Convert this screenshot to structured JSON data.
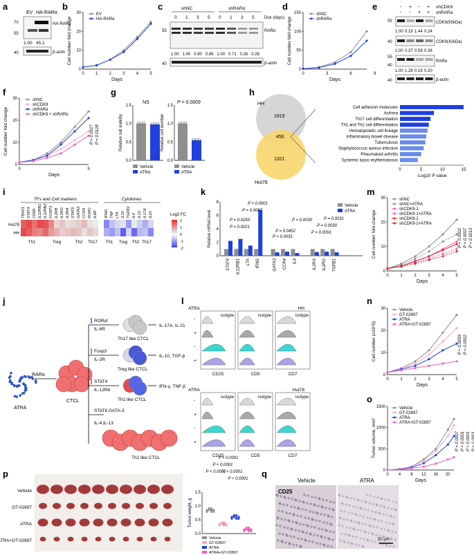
{
  "panels": {
    "a": {
      "letter": "a",
      "lanes": [
        "EV",
        "HA-RARα"
      ],
      "marker_top": "HA-RARα",
      "ladder_top": [
        "70",
        "55"
      ],
      "values": [
        "1.00",
        "45.1"
      ],
      "loading": "β-actin",
      "ladder_bottom": "40"
    },
    "b": {
      "letter": "b",
      "xlabel": "Days",
      "ylabel": "Cell number fold change",
      "legend": [
        "EV",
        "HA-RARα"
      ]
    },
    "c": {
      "letter": "c",
      "groups": [
        "shNC",
        "shRARα"
      ],
      "dox_label": "Dox (days)",
      "days": [
        "0",
        "1",
        "3",
        "5",
        "0",
        "1",
        "3",
        "5"
      ],
      "marker": "RARα",
      "ladder": [
        "55",
        "40"
      ],
      "values": [
        "1.00",
        "1.00",
        "0.90",
        "0.89",
        "1.00",
        "0.71",
        "0.26",
        "0.28"
      ],
      "loading": "β-actin"
    },
    "d": {
      "letter": "d",
      "xlabel": "Days",
      "ylabel": "Cell number fold change",
      "legend": [
        "shNC",
        "shRARα"
      ]
    },
    "e": {
      "letter": "e",
      "row_labels": [
        "shCDK9",
        "shRARα"
      ],
      "signs": [
        "-",
        "+",
        "-",
        "+",
        "-",
        "-",
        "+",
        "+"
      ],
      "markers": [
        "CDK9(55kDa)",
        "CDK9(42kDa)",
        "RARα",
        "β-actin"
      ],
      "ladder": [
        "55",
        "40",
        "40",
        "55",
        "40"
      ],
      "row1": [
        "1.00",
        "0.19",
        "1.44",
        "0.24"
      ],
      "row2": [
        "1.00",
        "0.37",
        "0.59",
        "0.36"
      ],
      "row3": [
        "1.00",
        "1.28",
        "0.23",
        "0.20"
      ]
    },
    "f": {
      "letter": "f",
      "xlabel": "Days",
      "ylabel": "Cell number fold change",
      "legend": [
        "shNC",
        "shCDK9",
        "shRARα",
        "shCDK9 + shRARα"
      ],
      "pvals": [
        "P = 0.0027",
        "P = 0.0128"
      ]
    },
    "g": {
      "letter": "g",
      "ylabel1": "Relative cell viability",
      "ylabel2": "Relative cell number",
      "ns": "NS",
      "p": "P = 0.0009",
      "legend": [
        "Vehicle",
        "ATRA"
      ]
    },
    "h": {
      "letter": "h",
      "hh": "HH",
      "hut": "Hut78",
      "n1": "1819",
      "n2": "456",
      "n3": "1321",
      "xlabel": "-Log10 P value",
      "terms": [
        "Cell adhesion molecules",
        "Asthma",
        "Th17 cell differentiation",
        "Th1 and Th2 cell differentiation",
        "Hematopoietic cell lineage",
        "Inflammatory bowel disease",
        "Tuberculosis",
        "Staphylococcus aureus infection",
        "Rheumatoid arthritis",
        "Systemic lupus erythematosus"
      ],
      "ticks": [
        "0",
        "5",
        "10",
        "15"
      ]
    },
    "i": {
      "letter": "i",
      "groupTitle1": "TFs and Cell markers",
      "groupTitle2": "Cytokines",
      "genes1": [
        "TBX21",
        "STAT4",
        "CD69",
        "IL12RB1",
        "IL12RB2",
        "FOXP3",
        "IL2RB",
        "IL2RG",
        "IL2RA",
        "STAT6",
        "GATA3",
        "CCR4",
        "RORC",
        "IL6R"
      ],
      "genes2": [
        "IFNG",
        "TNF",
        "LTA",
        "IL10",
        "TGFB1",
        "IL4",
        "IL13",
        "IL17A",
        "IL21"
      ],
      "rows": [
        "Hut78",
        "HH"
      ],
      "subsets1": [
        "Th1",
        "Treg",
        "Th2",
        "Th17"
      ],
      "subsets2": [
        "Th1",
        "Treg",
        "Th2",
        "Th17"
      ],
      "legend": "Log2 FC",
      "legend_ticks": [
        "2",
        "1",
        "0",
        "-1",
        "-2"
      ]
    },
    "k": {
      "letter": "k",
      "ylabel": "Relative mRNA level",
      "genes": [
        "STAT4",
        "IL12RB1",
        "LTA",
        "IFNG",
        "GATA3",
        "CCR4",
        "IL4",
        "IL2RA",
        "IL2RG",
        "TGFB1"
      ],
      "pvals": [
        "P < 0.0001",
        "P = 0.0087",
        "P = 0.0250",
        "P = 0.0021",
        "P = 0.0452",
        "P = 0.0031",
        "P = 0.0030",
        "P = 0.0031",
        "P = 0.0030",
        "P = 0.0091"
      ],
      "legend": [
        "Vehicle",
        "ATRA"
      ]
    },
    "m": {
      "letter": "m",
      "xlabel": "Days",
      "ylabel": "Cell number fold change",
      "legend": [
        "shNC",
        "shNC+ATRA",
        "shCDK9-1",
        "shCDK9-1+ATRA",
        "shCDK9-2",
        "shCDK9-2+ATRA"
      ],
      "pvals": [
        "P = 0.0002",
        "P = 0.0007",
        "P = 0.0013"
      ]
    },
    "j": {
      "letter": "j",
      "atra": "ATRA",
      "rara": "RARα",
      "ctcl": "CTCL",
      "th17_reg": [
        "RORγt",
        "IL-6R"
      ],
      "th17_out": "IL-17A, IL-21",
      "th17": "Th17 like CTCL",
      "treg_reg": [
        "Foxp3",
        "IL-2R"
      ],
      "treg_out": "IL-10, TGF-β",
      "treg": "Treg like CTCL",
      "th1_reg": [
        "STAT4",
        "IL-12Rb"
      ],
      "th1_out": "IFN-γ, TNF-β",
      "th1": "Th1 like CTCL",
      "th2_reg": [
        "STAT6,GATA-3",
        "IL-4,IL-13"
      ],
      "th2": "Th2 like CTCL"
    },
    "l": {
      "letter": "l",
      "atra": "ATRA",
      "cells": [
        "HH",
        "Hut78"
      ],
      "markers": [
        "CD25",
        "CD5",
        "CD7"
      ],
      "isotype": "isotype",
      "signs": [
        "-",
        "+",
        "-",
        "+"
      ]
    },
    "n": {
      "letter": "n",
      "xlabel": "Days",
      "ylabel": "Cell number (x10^5)",
      "legend": [
        "Vehicle",
        "GT-02897",
        "ATRA",
        "ATRA+GT-02897"
      ],
      "pvals": [
        "P = 0.0059",
        "P = 0.0002"
      ]
    },
    "o": {
      "letter": "o",
      "xlabel": "Days",
      "ylabel": "Tumor volume, mm³",
      "legend": [
        "Vehicle",
        "GT-02897",
        "ATRA",
        "ATRA+GT-02897"
      ],
      "pvals": [
        "P = 0.0007",
        "P < 0.0001",
        "P < 0.0001",
        "P < 0.0001"
      ]
    },
    "p": {
      "letter": "p",
      "rows": [
        "Vehicle",
        "GT-02897",
        "ATRA",
        "ATRA+GT-02897"
      ],
      "ylabel": "Tumor weight, g",
      "pvals": [
        "P < 0.0001",
        "P < 0.0001",
        "P < 0.0001",
        "P < 0.0001",
        "P < 0.0001"
      ],
      "legend": [
        "Vehicle",
        "GT-02897",
        "ATRA",
        "ATRA+GT-02897"
      ]
    },
    "q": {
      "letter": "q",
      "cols": [
        "Vehicle",
        "ATRA"
      ],
      "marker": "CD25",
      "scale": "50 μm"
    }
  },
  "colors": {
    "gray": "#8f8f8f",
    "blue": "#1f3fe0",
    "pink": "#f05fb8",
    "lightpink": "#f6a8c8",
    "red": "#d62828",
    "cyan": "#3cd6d0",
    "lavender": "#a9a4e6",
    "venn_gray": "#d6d6d6",
    "venn_yellow": "#f8d66c"
  },
  "chart_data": [
    {
      "panel": "b",
      "type": "line",
      "x": [
        0,
        1,
        2,
        3,
        4,
        5
      ],
      "series": [
        {
          "name": "EV",
          "values": [
            1,
            2,
            5,
            10,
            17,
            25
          ]
        },
        {
          "name": "HA-RARα",
          "values": [
            1,
            2,
            5,
            9,
            16,
            24
          ]
        }
      ],
      "ylim": [
        0,
        30
      ],
      "xlabel": "Days",
      "ylabel": "Cell number fold change"
    },
    {
      "panel": "d",
      "type": "line",
      "x": [
        0,
        2,
        4,
        6,
        8
      ],
      "series": [
        {
          "name": "shNC",
          "values": [
            1,
            5,
            18,
            45,
            100
          ]
        },
        {
          "name": "shRARα",
          "values": [
            1,
            4,
            14,
            35,
            75
          ]
        }
      ],
      "ylim": [
        0,
        150
      ],
      "xlabel": "Days"
    },
    {
      "panel": "f",
      "type": "line",
      "x": [
        0,
        1,
        2,
        3,
        4,
        5
      ],
      "series": [
        {
          "name": "shNC",
          "values": [
            1,
            2,
            5,
            10,
            17,
            24
          ]
        },
        {
          "name": "shCDK9",
          "values": [
            1,
            2,
            4,
            7,
            11,
            15
          ]
        },
        {
          "name": "shRARα",
          "values": [
            1,
            2,
            4,
            9,
            15,
            21
          ]
        },
        {
          "name": "shCDK9 + shRARα",
          "values": [
            1,
            1.5,
            3,
            5,
            9,
            13
          ]
        }
      ],
      "ylim": [
        0,
        30
      ],
      "xlabel": "Days"
    },
    {
      "panel": "g-left",
      "type": "bar",
      "categories": [
        "Vehicle",
        "ATRA"
      ],
      "values": [
        1.0,
        0.98
      ],
      "ylim": [
        0,
        1.5
      ]
    },
    {
      "panel": "g-right",
      "type": "bar",
      "categories": [
        "Vehicle",
        "ATRA"
      ],
      "values": [
        1.0,
        0.55
      ],
      "ylim": [
        0,
        1.5
      ]
    },
    {
      "panel": "h",
      "type": "bar",
      "categories": [
        "Cell adhesion molecules",
        "Asthma",
        "Th17 cell differentiation",
        "Th1 and Th2 cell differentiation",
        "Hematopoietic cell lineage",
        "Inflammatory bowel disease",
        "Tuberculosis",
        "Staphylococcus aureus infection",
        "Rheumatoid arthritis",
        "Systemic lupus erythematosus"
      ],
      "values": [
        15,
        8,
        7.2,
        6.8,
        6.5,
        6.2,
        6.0,
        5.6,
        5.0,
        4.2
      ],
      "xlim": [
        0,
        15
      ],
      "xlabel": "-Log10 P value"
    },
    {
      "panel": "k",
      "type": "bar",
      "categories": [
        "STAT4",
        "IL12RB1",
        "LTA",
        "IFNG",
        "GATA3",
        "CCR4",
        "IL4",
        "IL2RA",
        "IL2RG",
        "TGFB1"
      ],
      "series": [
        {
          "name": "Vehicle",
          "values": [
            1,
            1,
            1,
            1,
            1,
            1,
            1,
            1,
            1,
            1
          ]
        },
        {
          "name": "ATRA",
          "values": [
            2.2,
            2.5,
            1.5,
            6.8,
            0.5,
            0.6,
            0.4,
            0.55,
            0.6,
            0.5
          ]
        }
      ],
      "ylim": [
        0,
        8
      ],
      "ylabel": "Relative mRNA level"
    },
    {
      "panel": "m",
      "type": "line",
      "x": [
        0,
        1,
        2,
        3,
        4,
        5
      ],
      "series": [
        {
          "name": "shNC",
          "values": [
            1,
            3,
            6,
            10,
            15,
            21
          ]
        },
        {
          "name": "shNC+ATRA",
          "values": [
            1,
            2.5,
            5,
            8,
            12,
            15
          ]
        },
        {
          "name": "shCDK9-1",
          "values": [
            1,
            2,
            4,
            6,
            9,
            12
          ]
        },
        {
          "name": "shCDK9-1+ATRA",
          "values": [
            1,
            2,
            3.5,
            5,
            7,
            9
          ]
        },
        {
          "name": "shCDK9-2",
          "values": [
            1,
            2,
            4,
            6,
            8.5,
            11
          ]
        },
        {
          "name": "shCDK9-2+ATRA",
          "values": [
            1,
            1.8,
            3,
            4.5,
            6,
            8
          ]
        }
      ],
      "ylim": [
        0,
        30
      ],
      "xlabel": "Days"
    },
    {
      "panel": "n",
      "type": "line",
      "x": [
        0,
        1,
        2,
        3,
        4,
        5
      ],
      "series": [
        {
          "name": "Vehicle",
          "values": [
            1,
            3,
            6,
            11,
            19,
            27
          ]
        },
        {
          "name": "GT-02897",
          "values": [
            1,
            3,
            5,
            9,
            15,
            21
          ]
        },
        {
          "name": "ATRA",
          "values": [
            1,
            2.5,
            4,
            7,
            11,
            14
          ]
        },
        {
          "name": "ATRA+GT-02897",
          "values": [
            1,
            2,
            3,
            4,
            5,
            6
          ]
        }
      ],
      "ylim": [
        0,
        30
      ],
      "xlabel": "Days",
      "ylabel": "Cell number (x10^5)"
    },
    {
      "panel": "o",
      "type": "line",
      "x": [
        0,
        4,
        8,
        12,
        16,
        20,
        22
      ],
      "series": [
        {
          "name": "Vehicle",
          "values": [
            0,
            20,
            80,
            250,
            500,
            950,
            1200
          ]
        },
        {
          "name": "GT-02897",
          "values": [
            0,
            20,
            70,
            220,
            450,
            800,
            1050
          ]
        },
        {
          "name": "ATRA",
          "values": [
            0,
            20,
            60,
            160,
            350,
            600,
            800
          ]
        },
        {
          "name": "ATRA+GT-02897",
          "values": [
            0,
            15,
            40,
            80,
            150,
            250,
            300
          ]
        }
      ],
      "ylim": [
        0,
        1500
      ],
      "xlabel": "Days",
      "ylabel": "Tumor volume, mm³"
    },
    {
      "panel": "p",
      "type": "bar",
      "categories": [
        "Vehicle",
        "GT-02897",
        "ATRA",
        "ATRA+GT-02897"
      ],
      "values": [
        0.85,
        0.35,
        0.6,
        0.15
      ],
      "ylim": [
        0,
        1.5
      ],
      "ylabel": "Tumor weight, g"
    }
  ]
}
